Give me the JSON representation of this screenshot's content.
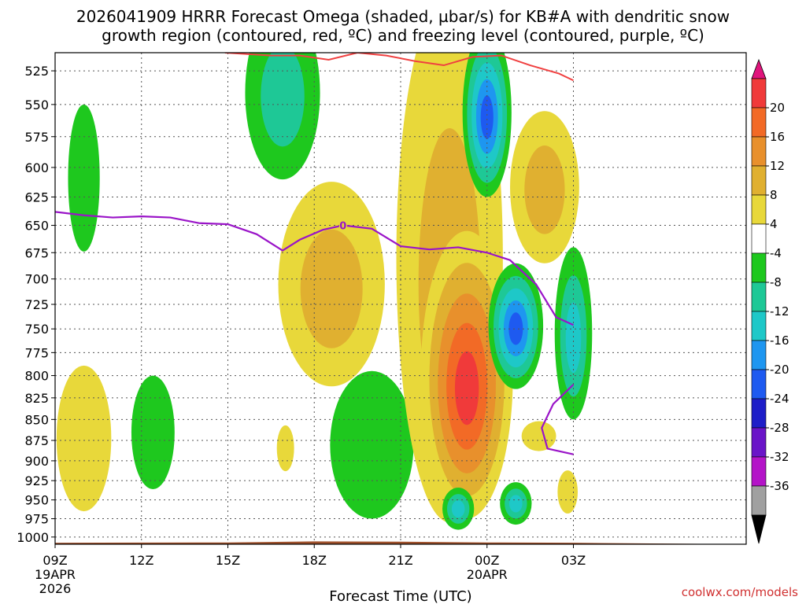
{
  "chart_data": {
    "type": "heatmap",
    "title_line1": "2026041909 HRRR Forecast Omega (shaded, µbar/s) for KB#A with dendritic snow",
    "title_line2": "growth region (contoured, red, ºC) and freezing level (contoured, purple, ºC)",
    "xlabel": "Forecast Time (UTC)",
    "credit": "coolwx.com/models",
    "x_range_hours": [
      9,
      33
    ],
    "x_ticks": [
      {
        "hour": 9,
        "label": "09Z",
        "sub1": "19APR",
        "sub2": "2026"
      },
      {
        "hour": 12,
        "label": "12Z",
        "sub1": "",
        "sub2": ""
      },
      {
        "hour": 15,
        "label": "15Z",
        "sub1": "",
        "sub2": ""
      },
      {
        "hour": 18,
        "label": "18Z",
        "sub1": "",
        "sub2": ""
      },
      {
        "hour": 21,
        "label": "21Z",
        "sub1": "",
        "sub2": ""
      },
      {
        "hour": 24,
        "label": "00Z",
        "sub1": "20APR",
        "sub2": ""
      },
      {
        "hour": 27,
        "label": "03Z",
        "sub1": "",
        "sub2": ""
      }
    ],
    "y_ticks": [
      525,
      550,
      575,
      600,
      625,
      650,
      675,
      700,
      725,
      750,
      775,
      800,
      825,
      850,
      875,
      900,
      925,
      950,
      975,
      1000
    ],
    "y_range_hpa": [
      1010,
      512
    ],
    "colorbar": {
      "labels": [
        "20",
        "16",
        "12",
        "8",
        "4",
        "-4",
        "-8",
        "-12",
        "-16",
        "-20",
        "-24",
        "-28",
        "-32",
        "-36"
      ],
      "colors": [
        "#e0147c",
        "#f03a3a",
        "#f26a26",
        "#e8902c",
        "#e0b030",
        "#e8d83a",
        "#ffffff",
        "#1ec81e",
        "#1ec896",
        "#1ec8c8",
        "#1e96f0",
        "#1e5af0",
        "#1e1ec8",
        "#6a14c8",
        "#b414c8",
        "#a0a0a0",
        "#000000"
      ]
    },
    "omega_features": [
      {
        "t": 10.0,
        "p": 612,
        "rt": 0.55,
        "rp": 62,
        "levels": [
          -4
        ]
      },
      {
        "t": 10.0,
        "p": 877,
        "rt": 0.95,
        "rp": 88,
        "levels": [
          4
        ]
      },
      {
        "t": 12.4,
        "p": 868,
        "rt": 0.75,
        "rp": 68,
        "levels": [
          -4
        ]
      },
      {
        "t": 16.9,
        "p": 545,
        "rt": 1.3,
        "rp": 65,
        "levels": [
          -4,
          -8
        ]
      },
      {
        "t": 17.0,
        "p": 885,
        "rt": 0.3,
        "rp": 28,
        "levels": [
          4
        ]
      },
      {
        "t": 18.6,
        "p": 712,
        "rt": 1.85,
        "rp": 100,
        "levels": [
          4,
          8
        ]
      },
      {
        "t": 20.0,
        "p": 885,
        "rt": 1.45,
        "rp": 90,
        "levels": [
          -4
        ]
      },
      {
        "t": 22.7,
        "p": 720,
        "rt": 1.85,
        "rp": 260,
        "levels": [
          4,
          8
        ]
      },
      {
        "t": 23.3,
        "p": 815,
        "rt": 1.6,
        "rp": 160,
        "levels": [
          4,
          8,
          12,
          16,
          20
        ]
      },
      {
        "t": 24.0,
        "p": 560,
        "rt": 0.85,
        "rp": 65,
        "levels": [
          -4,
          -8,
          -12,
          -16,
          -20
        ]
      },
      {
        "t": 23.0,
        "p": 962,
        "rt": 0.55,
        "rp": 28,
        "levels": [
          -4,
          -8,
          -12
        ]
      },
      {
        "t": 25.0,
        "p": 750,
        "rt": 0.95,
        "rp": 65,
        "levels": [
          -4,
          -8,
          -12,
          -16,
          -20
        ]
      },
      {
        "t": 26.0,
        "p": 620,
        "rt": 1.2,
        "rp": 65,
        "levels": [
          4,
          8
        ]
      },
      {
        "t": 25.0,
        "p": 955,
        "rt": 0.55,
        "rp": 28,
        "levels": [
          -4,
          -8,
          -12
        ]
      },
      {
        "t": 27.0,
        "p": 760,
        "rt": 0.65,
        "rp": 90,
        "levels": [
          -4,
          -8,
          -12
        ]
      },
      {
        "t": 25.8,
        "p": 870,
        "rt": 0.6,
        "rp": 18,
        "levels": [
          4
        ]
      },
      {
        "t": 26.8,
        "p": 940,
        "rt": 0.35,
        "rp": 28,
        "levels": [
          4
        ]
      }
    ],
    "freezing_level": {
      "label": "0",
      "label_at_hour": 19.0,
      "points": [
        [
          9,
          638
        ],
        [
          10,
          641
        ],
        [
          11,
          643
        ],
        [
          12,
          642
        ],
        [
          13,
          643
        ],
        [
          14,
          648
        ],
        [
          15,
          649
        ],
        [
          16,
          658
        ],
        [
          16.9,
          673
        ],
        [
          17.5,
          663
        ],
        [
          18.3,
          654
        ],
        [
          19,
          650
        ],
        [
          20,
          653
        ],
        [
          21,
          669
        ],
        [
          22,
          672
        ],
        [
          23,
          670
        ],
        [
          24,
          675
        ],
        [
          24.8,
          682
        ],
        [
          25.7,
          705
        ],
        [
          26.4,
          738
        ],
        [
          27,
          746
        ]
      ],
      "second_branch": [
        [
          27,
          810
        ],
        [
          26.3,
          832
        ],
        [
          25.9,
          860
        ],
        [
          26.1,
          885
        ],
        [
          27,
          892
        ]
      ]
    },
    "dgz_line": {
      "points": [
        [
          14.9,
          512
        ],
        [
          16.5,
          514
        ],
        [
          17.5,
          514
        ],
        [
          18.5,
          517
        ],
        [
          19.5,
          512
        ],
        [
          20.5,
          514
        ],
        [
          21.5,
          518
        ],
        [
          22.5,
          521
        ],
        [
          23.5,
          515
        ],
        [
          24.5,
          514
        ],
        [
          25.5,
          521
        ],
        [
          26.5,
          527
        ],
        [
          27,
          532
        ]
      ]
    },
    "terrain_bottom": {
      "color": "#a0522d",
      "pressure_by_hour": [
        [
          9,
          1008
        ],
        [
          15,
          1007.5
        ],
        [
          18,
          1006
        ],
        [
          21,
          1006.5
        ],
        [
          24,
          1007.5
        ],
        [
          27,
          1008
        ]
      ]
    }
  }
}
